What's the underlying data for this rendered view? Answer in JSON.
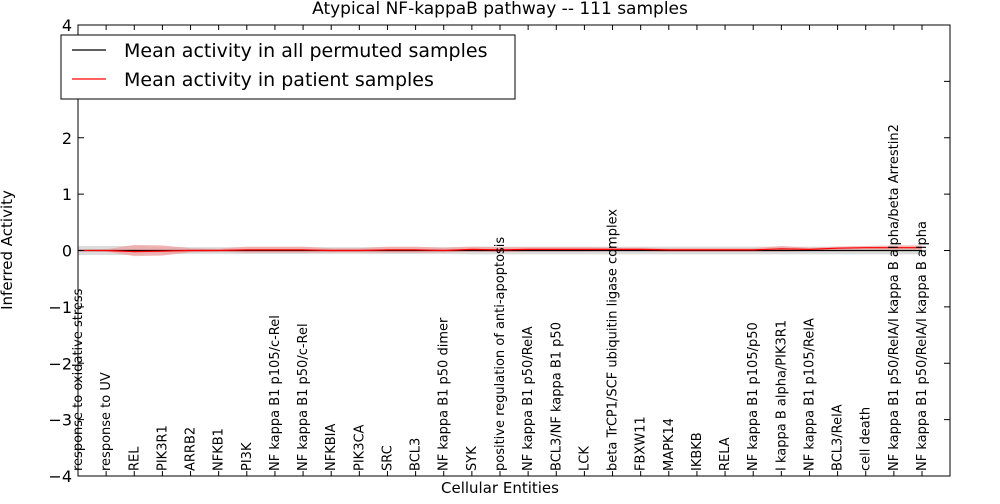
{
  "chart_data": {
    "type": "line",
    "title": "Atypical NF-kappaB pathway -- 111 samples",
    "xlabel": "Cellular Entities",
    "ylabel": "Inferred Activity",
    "ylim": [
      -4,
      4
    ],
    "yticks": [
      "−4",
      "−3",
      "−2",
      "−1",
      "0",
      "1",
      "2",
      "3",
      "4"
    ],
    "ytick_values": [
      -4,
      -3,
      -2,
      -1,
      0,
      1,
      2,
      3,
      4
    ],
    "grid": false,
    "legend_position": "top-left",
    "categories": [
      "response to oxidative stress",
      "response to UV",
      "REL",
      "PIK3R1",
      "ARRB2",
      "NFKB1",
      "PI3K",
      "NF kappa B1 p105/c-Rel",
      "NF kappa B1 p50/c-Rel",
      "NFKBIA",
      "PIK3CA",
      "SRC",
      "BCL3",
      "NF kappa B1 p50 dimer",
      "SYK",
      "positive regulation of anti-apoptosis",
      "NF kappa B1 p50/RelA",
      "BCL3/NF kappa B1 p50",
      "LCK",
      "beta TrCP1/SCF ubiquitin ligase complex",
      "FBXW11",
      "MAPK14",
      "IKBKB",
      "RELA",
      "NF kappa B1 p105/p50",
      "I kappa B alpha/PIK3R1",
      "NF kappa B1 p105/RelA",
      "BCL3/RelA",
      "cell death",
      "NF kappa B1 p50/RelA/I kappa B alpha/beta Arrestin2",
      "NF kappa B1 p50/RelA/I kappa B alpha"
    ],
    "series": [
      {
        "name": "Mean activity in all permuted samples",
        "color": "#000000",
        "values": [
          0,
          0,
          0,
          0,
          0,
          0,
          0,
          0,
          0,
          0,
          0,
          0,
          0,
          0,
          0,
          0,
          0,
          0,
          0,
          0,
          0,
          0,
          0,
          0,
          0,
          0,
          0,
          0,
          0,
          0,
          0
        ],
        "band_upper": [
          0.08,
          0.08,
          0.08,
          0.07,
          0.06,
          0.06,
          0.06,
          0.06,
          0.06,
          0.06,
          0.06,
          0.06,
          0.06,
          0.06,
          0.07,
          0.07,
          0.07,
          0.07,
          0.07,
          0.07,
          0.07,
          0.07,
          0.07,
          0.07,
          0.07,
          0.07,
          0.07,
          0.07,
          0.07,
          0.07,
          0.07
        ],
        "band_lower": [
          -0.08,
          -0.08,
          -0.08,
          -0.07,
          -0.06,
          -0.06,
          -0.06,
          -0.06,
          -0.06,
          -0.06,
          -0.06,
          -0.06,
          -0.06,
          -0.06,
          -0.07,
          -0.07,
          -0.07,
          -0.07,
          -0.07,
          -0.07,
          -0.07,
          -0.07,
          -0.07,
          -0.07,
          -0.07,
          -0.07,
          -0.07,
          -0.07,
          -0.07,
          -0.07,
          -0.07
        ],
        "band_color": "#d3d3d3"
      },
      {
        "name": "Mean activity in patient samples",
        "color": "#ff0000",
        "values": [
          0,
          0,
          -0.02,
          -0.01,
          0,
          0,
          0.01,
          0.01,
          0.01,
          0,
          0,
          0.01,
          0.01,
          0,
          0.02,
          0.01,
          0.02,
          0.02,
          0.02,
          0.02,
          0.02,
          0.01,
          0.01,
          0.01,
          0.01,
          0.03,
          0.02,
          0.04,
          0.05,
          0.05,
          0.05
        ],
        "band_upper": [
          0.01,
          0.02,
          0.1,
          0.09,
          0.04,
          0.03,
          0.07,
          0.07,
          0.07,
          0.04,
          0.04,
          0.07,
          0.07,
          0.05,
          0.07,
          0.06,
          0.06,
          0.06,
          0.06,
          0.05,
          0.05,
          0.04,
          0.04,
          0.04,
          0.04,
          0.08,
          0.05,
          0.07,
          0.08,
          0.09,
          0.09
        ],
        "band_lower": [
          -0.01,
          -0.02,
          -0.1,
          -0.09,
          -0.03,
          -0.02,
          -0.04,
          -0.04,
          -0.04,
          -0.03,
          -0.03,
          -0.04,
          -0.04,
          -0.03,
          -0.02,
          -0.03,
          -0.02,
          -0.02,
          -0.02,
          -0.01,
          -0.01,
          -0.02,
          -0.02,
          -0.02,
          -0.02,
          -0.02,
          -0.01,
          0.01,
          0.02,
          0.02,
          0.02
        ],
        "band_color": "#f29b9b"
      }
    ]
  }
}
